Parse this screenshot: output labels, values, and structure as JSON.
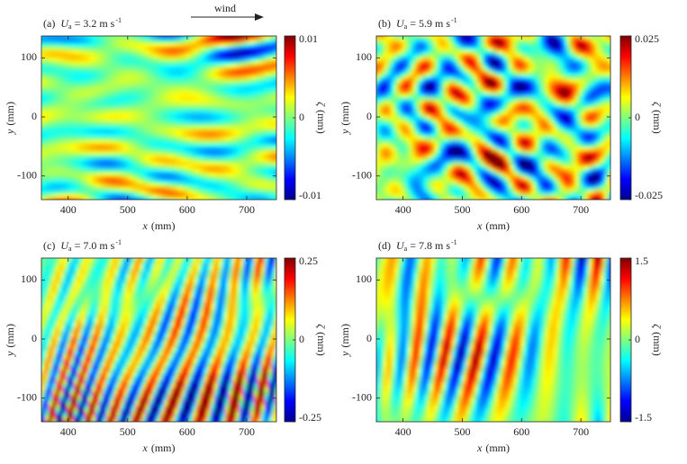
{
  "annotation": "wind",
  "chart_data": [
    {
      "type": "heatmap",
      "title": {
        "label": "(a)",
        "symbol": "U",
        "sub": "a",
        "text": "= 3.2 m s",
        "sup": "-1"
      },
      "xlabel": {
        "var": "x",
        "unit": "(mm)"
      },
      "ylabel": {
        "var": "y",
        "unit": "(mm)"
      },
      "zlabel": {
        "var": "ζ",
        "unit": "(mm)"
      },
      "xlim": [
        355,
        750
      ],
      "xticks": [
        400,
        500,
        600,
        700
      ],
      "ylim": [
        -140,
        137
      ],
      "yticks": [
        -100,
        0,
        100
      ],
      "zlim": [
        -0.01,
        0.01
      ],
      "zticks": [
        -0.01,
        0,
        0.01
      ],
      "colormap": "jet"
    },
    {
      "type": "heatmap",
      "title": {
        "label": "(b)",
        "symbol": "U",
        "sub": "a",
        "text": "= 5.9 m s",
        "sup": "-1"
      },
      "xlabel": {
        "var": "x",
        "unit": "(mm)"
      },
      "ylabel": {
        "var": "y",
        "unit": "(mm)"
      },
      "zlabel": {
        "var": "ζ",
        "unit": "(mm)"
      },
      "xlim": [
        355,
        750
      ],
      "xticks": [
        400,
        500,
        600,
        700
      ],
      "ylim": [
        -140,
        137
      ],
      "yticks": [
        -100,
        0,
        100
      ],
      "zlim": [
        -0.025,
        0.025
      ],
      "zticks": [
        -0.025,
        0,
        0.025
      ],
      "colormap": "jet"
    },
    {
      "type": "heatmap",
      "title": {
        "label": "(c)",
        "symbol": "U",
        "sub": "a",
        "text": "= 7.0 m s",
        "sup": "-1"
      },
      "xlabel": {
        "var": "x",
        "unit": "(mm)"
      },
      "ylabel": {
        "var": "y",
        "unit": "(mm)"
      },
      "zlabel": {
        "var": "ζ",
        "unit": "(mm)"
      },
      "xlim": [
        355,
        750
      ],
      "xticks": [
        400,
        500,
        600,
        700
      ],
      "ylim": [
        -140,
        137
      ],
      "yticks": [
        -100,
        0,
        100
      ],
      "zlim": [
        -0.25,
        0.25
      ],
      "zticks": [
        -0.25,
        0,
        0.25
      ],
      "colormap": "jet"
    },
    {
      "type": "heatmap",
      "title": {
        "label": "(d)",
        "symbol": "U",
        "sub": "a",
        "text": "= 7.8 m s",
        "sup": "-1"
      },
      "xlabel": {
        "var": "x",
        "unit": "(mm)"
      },
      "ylabel": {
        "var": "y",
        "unit": "(mm)"
      },
      "zlabel": {
        "var": "ζ",
        "unit": "(mm)"
      },
      "xlim": [
        355,
        750
      ],
      "xticks": [
        400,
        500,
        600,
        700
      ],
      "ylim": [
        -140,
        137
      ],
      "yticks": [
        -100,
        0,
        100
      ],
      "zlim": [
        -1.5,
        1.5
      ],
      "zticks": [
        -1.5,
        0,
        1.5
      ],
      "colormap": "jet"
    }
  ]
}
